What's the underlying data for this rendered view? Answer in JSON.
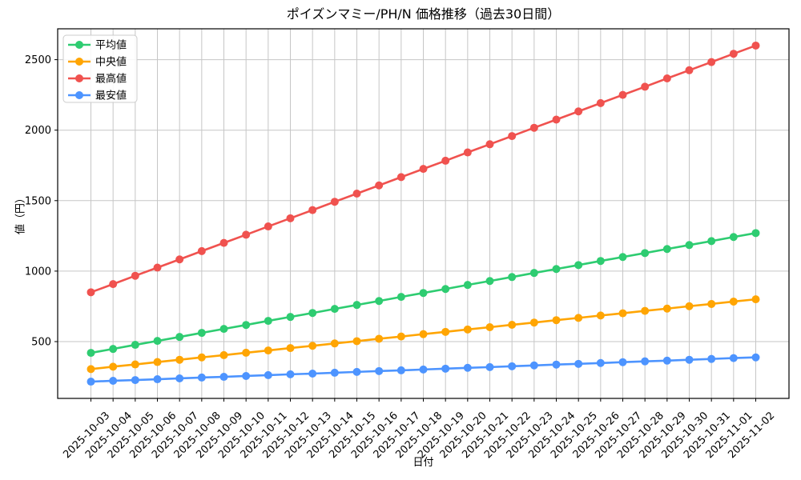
{
  "chart_data": {
    "type": "line",
    "title": "ポイズンマミー/PH/N 価格推移（過去30日間）",
    "xlabel": "日付",
    "ylabel": "値（円）",
    "x": [
      "2025-10-03",
      "2025-10-04",
      "2025-10-05",
      "2025-10-06",
      "2025-10-07",
      "2025-10-08",
      "2025-10-09",
      "2025-10-10",
      "2025-10-11",
      "2025-10-12",
      "2025-10-13",
      "2025-10-14",
      "2025-10-15",
      "2025-10-16",
      "2025-10-17",
      "2025-10-18",
      "2025-10-19",
      "2025-10-20",
      "2025-10-21",
      "2025-10-22",
      "2025-10-23",
      "2025-10-24",
      "2025-10-25",
      "2025-10-26",
      "2025-10-27",
      "2025-10-28",
      "2025-10-29",
      "2025-10-30",
      "2025-10-31",
      "2025-11-01",
      "2025-11-02"
    ],
    "series": [
      {
        "id": "mean",
        "name": "平均値",
        "color": "#2ecc71",
        "values": [
          420,
          448,
          477,
          505,
          533,
          562,
          590,
          618,
          647,
          675,
          703,
          732,
          760,
          788,
          817,
          845,
          873,
          902,
          930,
          958,
          987,
          1015,
          1043,
          1072,
          1100,
          1128,
          1157,
          1185,
          1213,
          1242,
          1270
        ]
      },
      {
        "id": "median",
        "name": "中央値",
        "color": "#ffa502",
        "values": [
          305,
          322,
          338,
          355,
          371,
          388,
          404,
          421,
          437,
          454,
          470,
          487,
          503,
          520,
          536,
          553,
          569,
          586,
          602,
          619,
          635,
          652,
          668,
          685,
          701,
          718,
          734,
          751,
          767,
          784,
          800
        ]
      },
      {
        "id": "max",
        "name": "最高値",
        "color": "#f0524f",
        "values": [
          850,
          908,
          967,
          1025,
          1083,
          1142,
          1200,
          1258,
          1317,
          1375,
          1433,
          1492,
          1550,
          1608,
          1667,
          1725,
          1783,
          1842,
          1900,
          1958,
          2017,
          2075,
          2133,
          2192,
          2250,
          2308,
          2367,
          2425,
          2483,
          2542,
          2600
        ]
      },
      {
        "id": "min",
        "name": "最安値",
        "color": "#4d94ff",
        "values": [
          216,
          222,
          227,
          233,
          239,
          245,
          250,
          256,
          262,
          268,
          273,
          279,
          285,
          291,
          296,
          302,
          308,
          314,
          319,
          325,
          331,
          337,
          342,
          348,
          354,
          360,
          365,
          371,
          377,
          383,
          388
        ]
      }
    ],
    "yticks": [
      500,
      1000,
      1500,
      2000,
      2500
    ],
    "ylim": [
      97,
      2719
    ],
    "xlim": [
      -1.5,
      31.5
    ],
    "grid": true,
    "legend_position": "upper-left",
    "marker": "circle",
    "background": "#ffffff",
    "grid_color": "#c6c6c6",
    "spine_color": "#000000",
    "text_color": "#000000"
  }
}
